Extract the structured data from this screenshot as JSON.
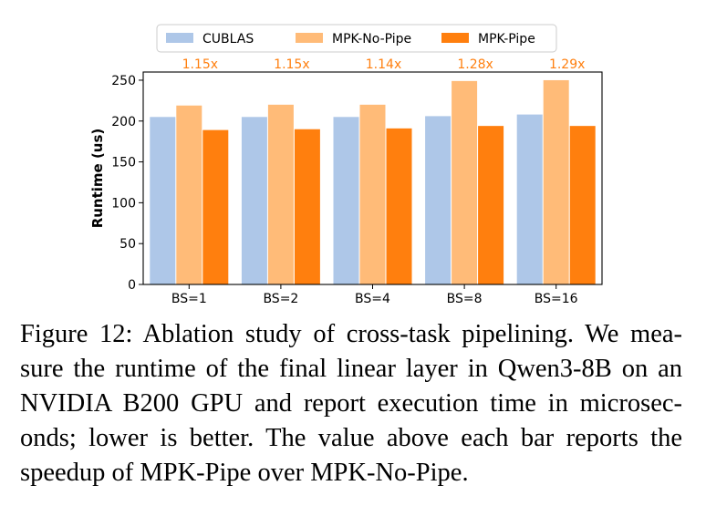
{
  "chart_data": {
    "type": "bar",
    "categories": [
      "BS=1",
      "BS=2",
      "BS=4",
      "BS=8",
      "BS=16"
    ],
    "series": [
      {
        "name": "CUBLAS",
        "values": [
          205,
          205,
          205,
          206,
          208
        ],
        "color": "#aec7e8"
      },
      {
        "name": "MPK-No-Pipe",
        "values": [
          219,
          220,
          220,
          249,
          250
        ],
        "color": "#ffbb78"
      },
      {
        "name": "MPK-Pipe",
        "values": [
          189,
          190,
          191,
          194,
          194
        ],
        "color": "#ff7f0e"
      }
    ],
    "speedup_labels": [
      "1.15x",
      "1.15x",
      "1.14x",
      "1.28x",
      "1.29x"
    ],
    "speedup_color": "#ff7f0e",
    "ylabel": "Runtime (us)",
    "xlabel": "",
    "ylim": [
      0,
      260
    ],
    "yticks": [
      0,
      50,
      100,
      150,
      200,
      250
    ],
    "legend_position": "top-center",
    "grid": false
  },
  "caption": "Figure 12: Ablation study of cross-task pipelining. We mea-sure the runtime of the final linear layer in Qwen3-8B on an NVIDIA B200 GPU and report execution time in microsec-onds; lower is better. The value above each bar reports the speedup of MPK-Pipe over MPK-No-Pipe."
}
